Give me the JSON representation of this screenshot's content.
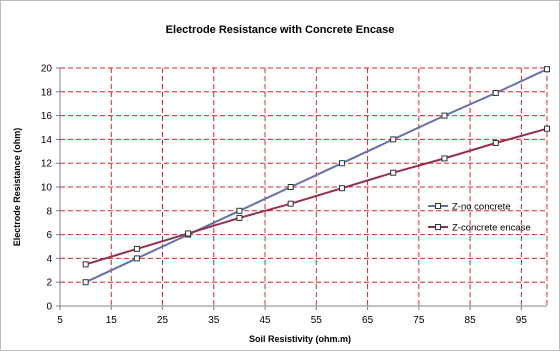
{
  "chart_data": {
    "type": "line",
    "title": "Electrode Resistance with Concrete Encase",
    "xlabel": "Soil Resistivity (ohm.m)",
    "ylabel": "Electrode Resistance (ohm)",
    "xlim": [
      5,
      100
    ],
    "ylim": [
      0,
      20
    ],
    "x_ticks": [
      5,
      15,
      25,
      35,
      45,
      55,
      65,
      75,
      85,
      95
    ],
    "y_ticks": [
      0,
      2,
      4,
      6,
      8,
      10,
      12,
      14,
      16,
      18,
      20
    ],
    "grid": true,
    "legend_position": "right",
    "series": [
      {
        "name": "Z-no concrete",
        "color": "#6670a8",
        "x": [
          10,
          20,
          30,
          40,
          50,
          60,
          70,
          80,
          90,
          100
        ],
        "values": [
          2.0,
          4.0,
          6.0,
          8.0,
          10.0,
          12.0,
          14.0,
          16.0,
          17.9,
          19.9
        ]
      },
      {
        "name": "Z-concrete encase",
        "color": "#94304d",
        "x": [
          10,
          20,
          30,
          40,
          50,
          60,
          70,
          80,
          90,
          100
        ],
        "values": [
          3.5,
          4.8,
          6.1,
          7.4,
          8.6,
          9.9,
          11.2,
          12.4,
          13.7,
          14.9
        ]
      }
    ]
  }
}
